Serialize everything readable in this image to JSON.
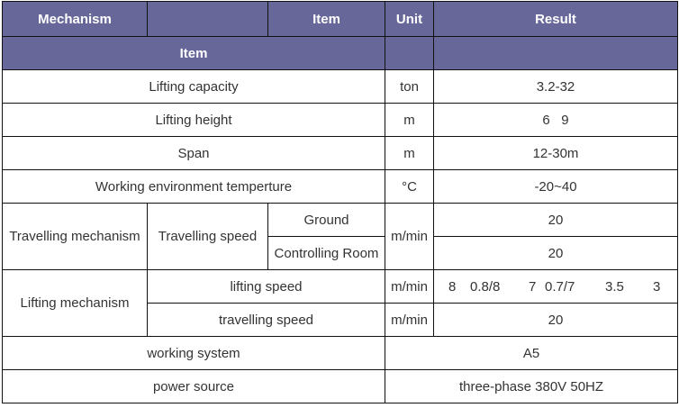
{
  "header": {
    "mechanism": "Mechanism",
    "item": "Item",
    "unit": "Unit",
    "result": "Result",
    "subheader_item": "Item"
  },
  "rows": {
    "lifting_capacity": {
      "item": "Lifting capacity",
      "unit": "ton",
      "result": "3.2-32"
    },
    "lifting_height": {
      "item": "Lifting height",
      "unit": "m",
      "result": "6   9"
    },
    "span": {
      "item": "Span",
      "unit": "m",
      "result": "12-30m"
    },
    "working_env": {
      "item": "Working environment temperture",
      "unit": "°C",
      "result": "-20~40"
    },
    "travelling": {
      "mechanism": "Travelling mechanism",
      "item": "Travelling speed",
      "sub": [
        "Ground",
        "Controlling Room"
      ],
      "unit": "m/min",
      "results": [
        "20",
        "20"
      ]
    },
    "lifting": {
      "mechanism": "Lifting mechanism",
      "lifting_speed": "lifting speed",
      "lifting_unit": "m/min",
      "lifting_values": [
        "8",
        "0.8/8",
        "7",
        "0.7/7",
        "3.5",
        "3"
      ],
      "travelling_speed": "travelling speed",
      "travelling_unit": "m/min",
      "travelling_result": "20"
    },
    "working_system": {
      "item": "working system",
      "result": "A5"
    },
    "power_source": {
      "item": "power source",
      "result": "three-phase 380V 50HZ"
    }
  },
  "colors": {
    "header_bg": "#676799"
  }
}
